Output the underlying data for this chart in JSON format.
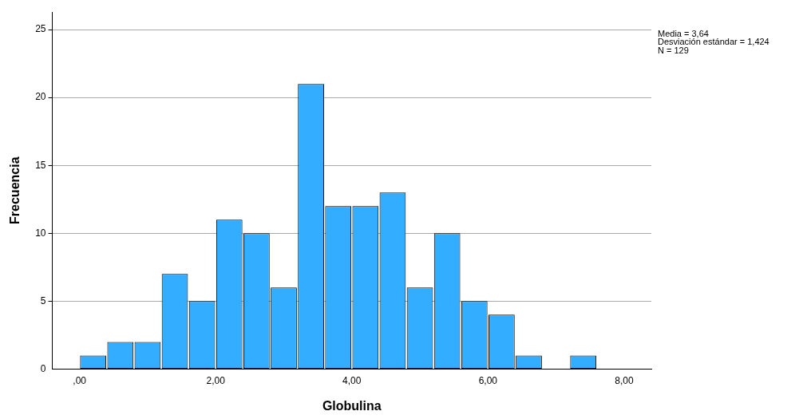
{
  "chart_data": {
    "type": "histogram",
    "xlabel": "Globulina",
    "ylabel": "Frecuencia",
    "bins": [
      0,
      0.4,
      0.8,
      1.2,
      1.6,
      2.0,
      2.4,
      2.8,
      3.2,
      3.6,
      4.0,
      4.4,
      4.8,
      5.2,
      5.6,
      6.0,
      6.4,
      6.8,
      7.2,
      7.6
    ],
    "values": [
      1,
      2,
      2,
      7,
      5,
      11,
      10,
      6,
      21,
      12,
      12,
      13,
      6,
      10,
      5,
      4,
      1,
      0,
      1
    ],
    "color": "#33adff",
    "xlim": [
      -0.4,
      8.4
    ],
    "xticks": [
      {
        "value": 0,
        "label": ",00"
      },
      {
        "value": 2,
        "label": "2,00"
      },
      {
        "value": 4,
        "label": "4,00"
      },
      {
        "value": 6,
        "label": "6,00"
      },
      {
        "value": 8,
        "label": "8,00"
      }
    ],
    "ylim": [
      0,
      26.3
    ],
    "yticks": [
      0,
      5,
      10,
      15,
      20,
      25
    ],
    "grid": "y",
    "legend": false,
    "annotations": [
      "Media = 3,64",
      "Desviación estándar = 1,424",
      "N = 129"
    ]
  }
}
